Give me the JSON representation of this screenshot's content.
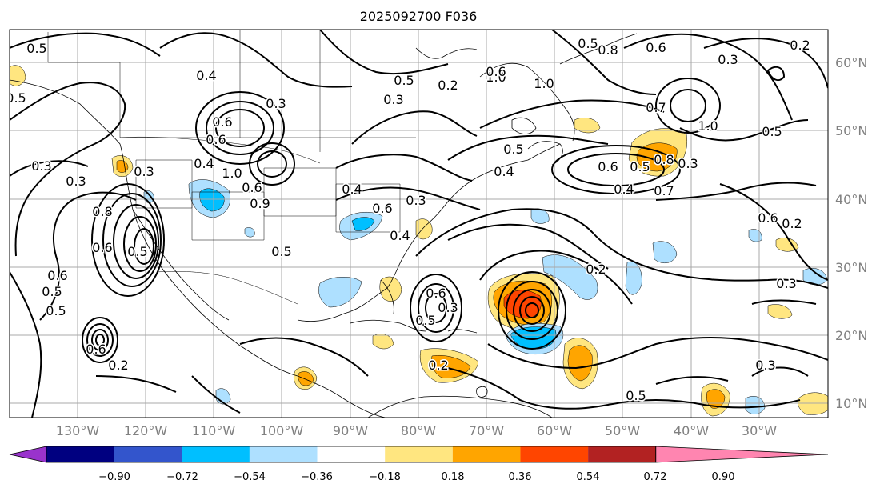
{
  "title": "2025092700 F036",
  "lon_labels": [
    "130°W",
    "120°W",
    "110°W",
    "100°W",
    "90°W",
    "80°W",
    "70°W",
    "60°W",
    "50°W",
    "40°W",
    "30°W"
  ],
  "lat_labels": [
    "60°N",
    "50°N",
    "40°N",
    "30°N",
    "20°N",
    "10°N"
  ],
  "colorbar": {
    "ticks": [
      "−0.90",
      "−0.72",
      "−0.54",
      "−0.36",
      "−0.18",
      "0.18",
      "0.36",
      "0.54",
      "0.72",
      "0.90"
    ],
    "colors": [
      "#9933cc",
      "#000080",
      "#3355cc",
      "#00bfff",
      "#aee0ff",
      "#ffffff",
      "#ffe680",
      "#ffa500",
      "#ff4500",
      "#b22222",
      "#ff85b0"
    ]
  },
  "contour_labels": [
    "0.5",
    "0.4",
    "0.5",
    "0.3",
    "0.6",
    "0.6",
    "0.3",
    "0.3",
    "0.3",
    "0.8",
    "0.6",
    "0.5",
    "0.6",
    "0.5",
    "0.6",
    "0.2",
    "0.4",
    "1.0",
    "0.6",
    "0.9",
    "0.5",
    "0.4",
    "0.6",
    "0.3",
    "0.2",
    "0.3",
    "0.4",
    "0.6",
    "0.5",
    "0.3",
    "0.2",
    "1.0",
    "1.0",
    "0.5",
    "0.4",
    "0.5",
    "0.8",
    "0.6",
    "0.7",
    "1.0",
    "0.8",
    "0.5",
    "0.4",
    "0.3",
    "0.3",
    "0.5",
    "0.2",
    "0.6",
    "0.7",
    "0.2",
    "0.5",
    "0.3",
    "0.3",
    "0.2",
    "0.6",
    "0.5",
    "0.5",
    "0.6"
  ]
}
